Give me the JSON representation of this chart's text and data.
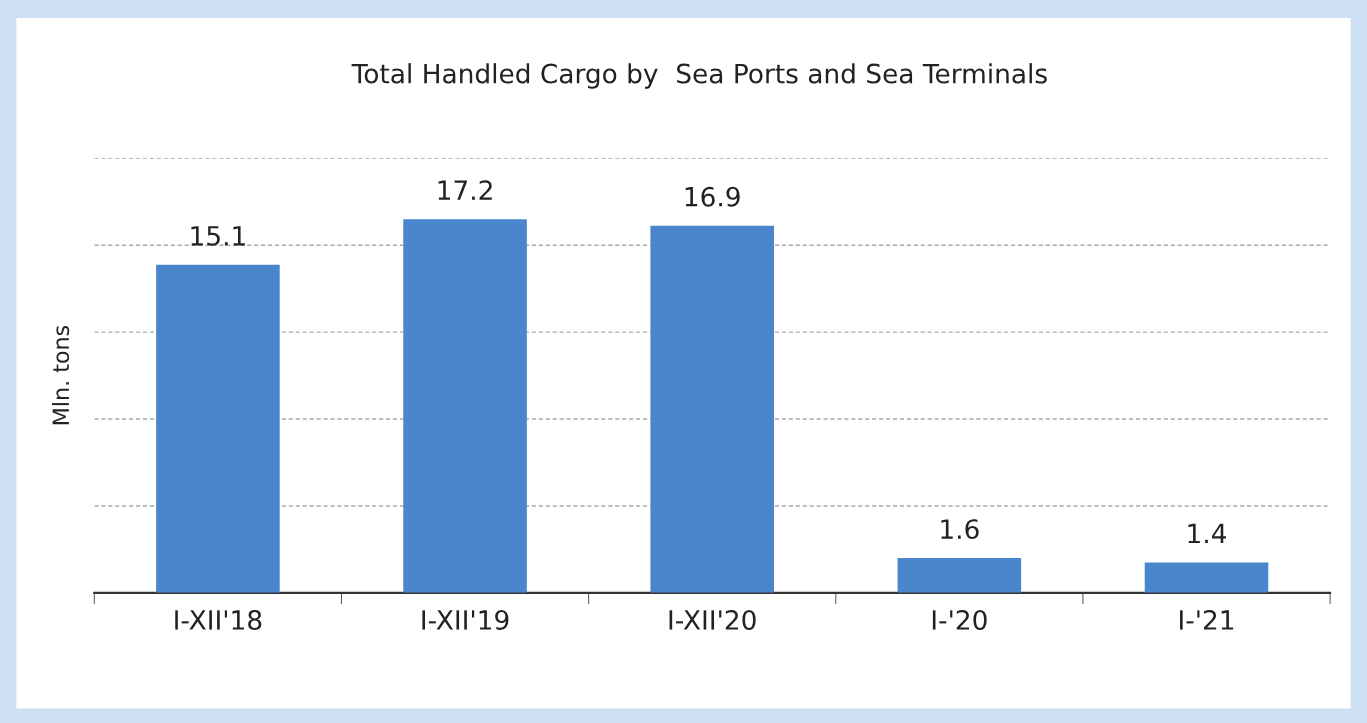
{
  "chart_data": {
    "type": "bar",
    "title": "Total Handled Cargo by  Sea Ports and Sea Terminals",
    "ylabel": "Mln. tons",
    "categories": [
      "I-XII'18",
      "I-XII'19",
      "I-XII'20",
      "I-'20",
      "I-'21"
    ],
    "values": [
      15.1,
      17.2,
      16.9,
      1.6,
      1.4
    ],
    "color": "#4a86cc",
    "ylim": [
      0,
      20
    ],
    "yticks": [
      {
        "value": 0,
        "label": null
      },
      {
        "value": 4,
        "label": null
      },
      {
        "value": 8,
        "label": null
      },
      {
        "value": 12,
        "label": null
      },
      {
        "value": 16,
        "label": null
      },
      {
        "value": 20,
        "label": null
      }
    ],
    "tick_labels": "x",
    "grid": "y",
    "data_labels": true
  }
}
